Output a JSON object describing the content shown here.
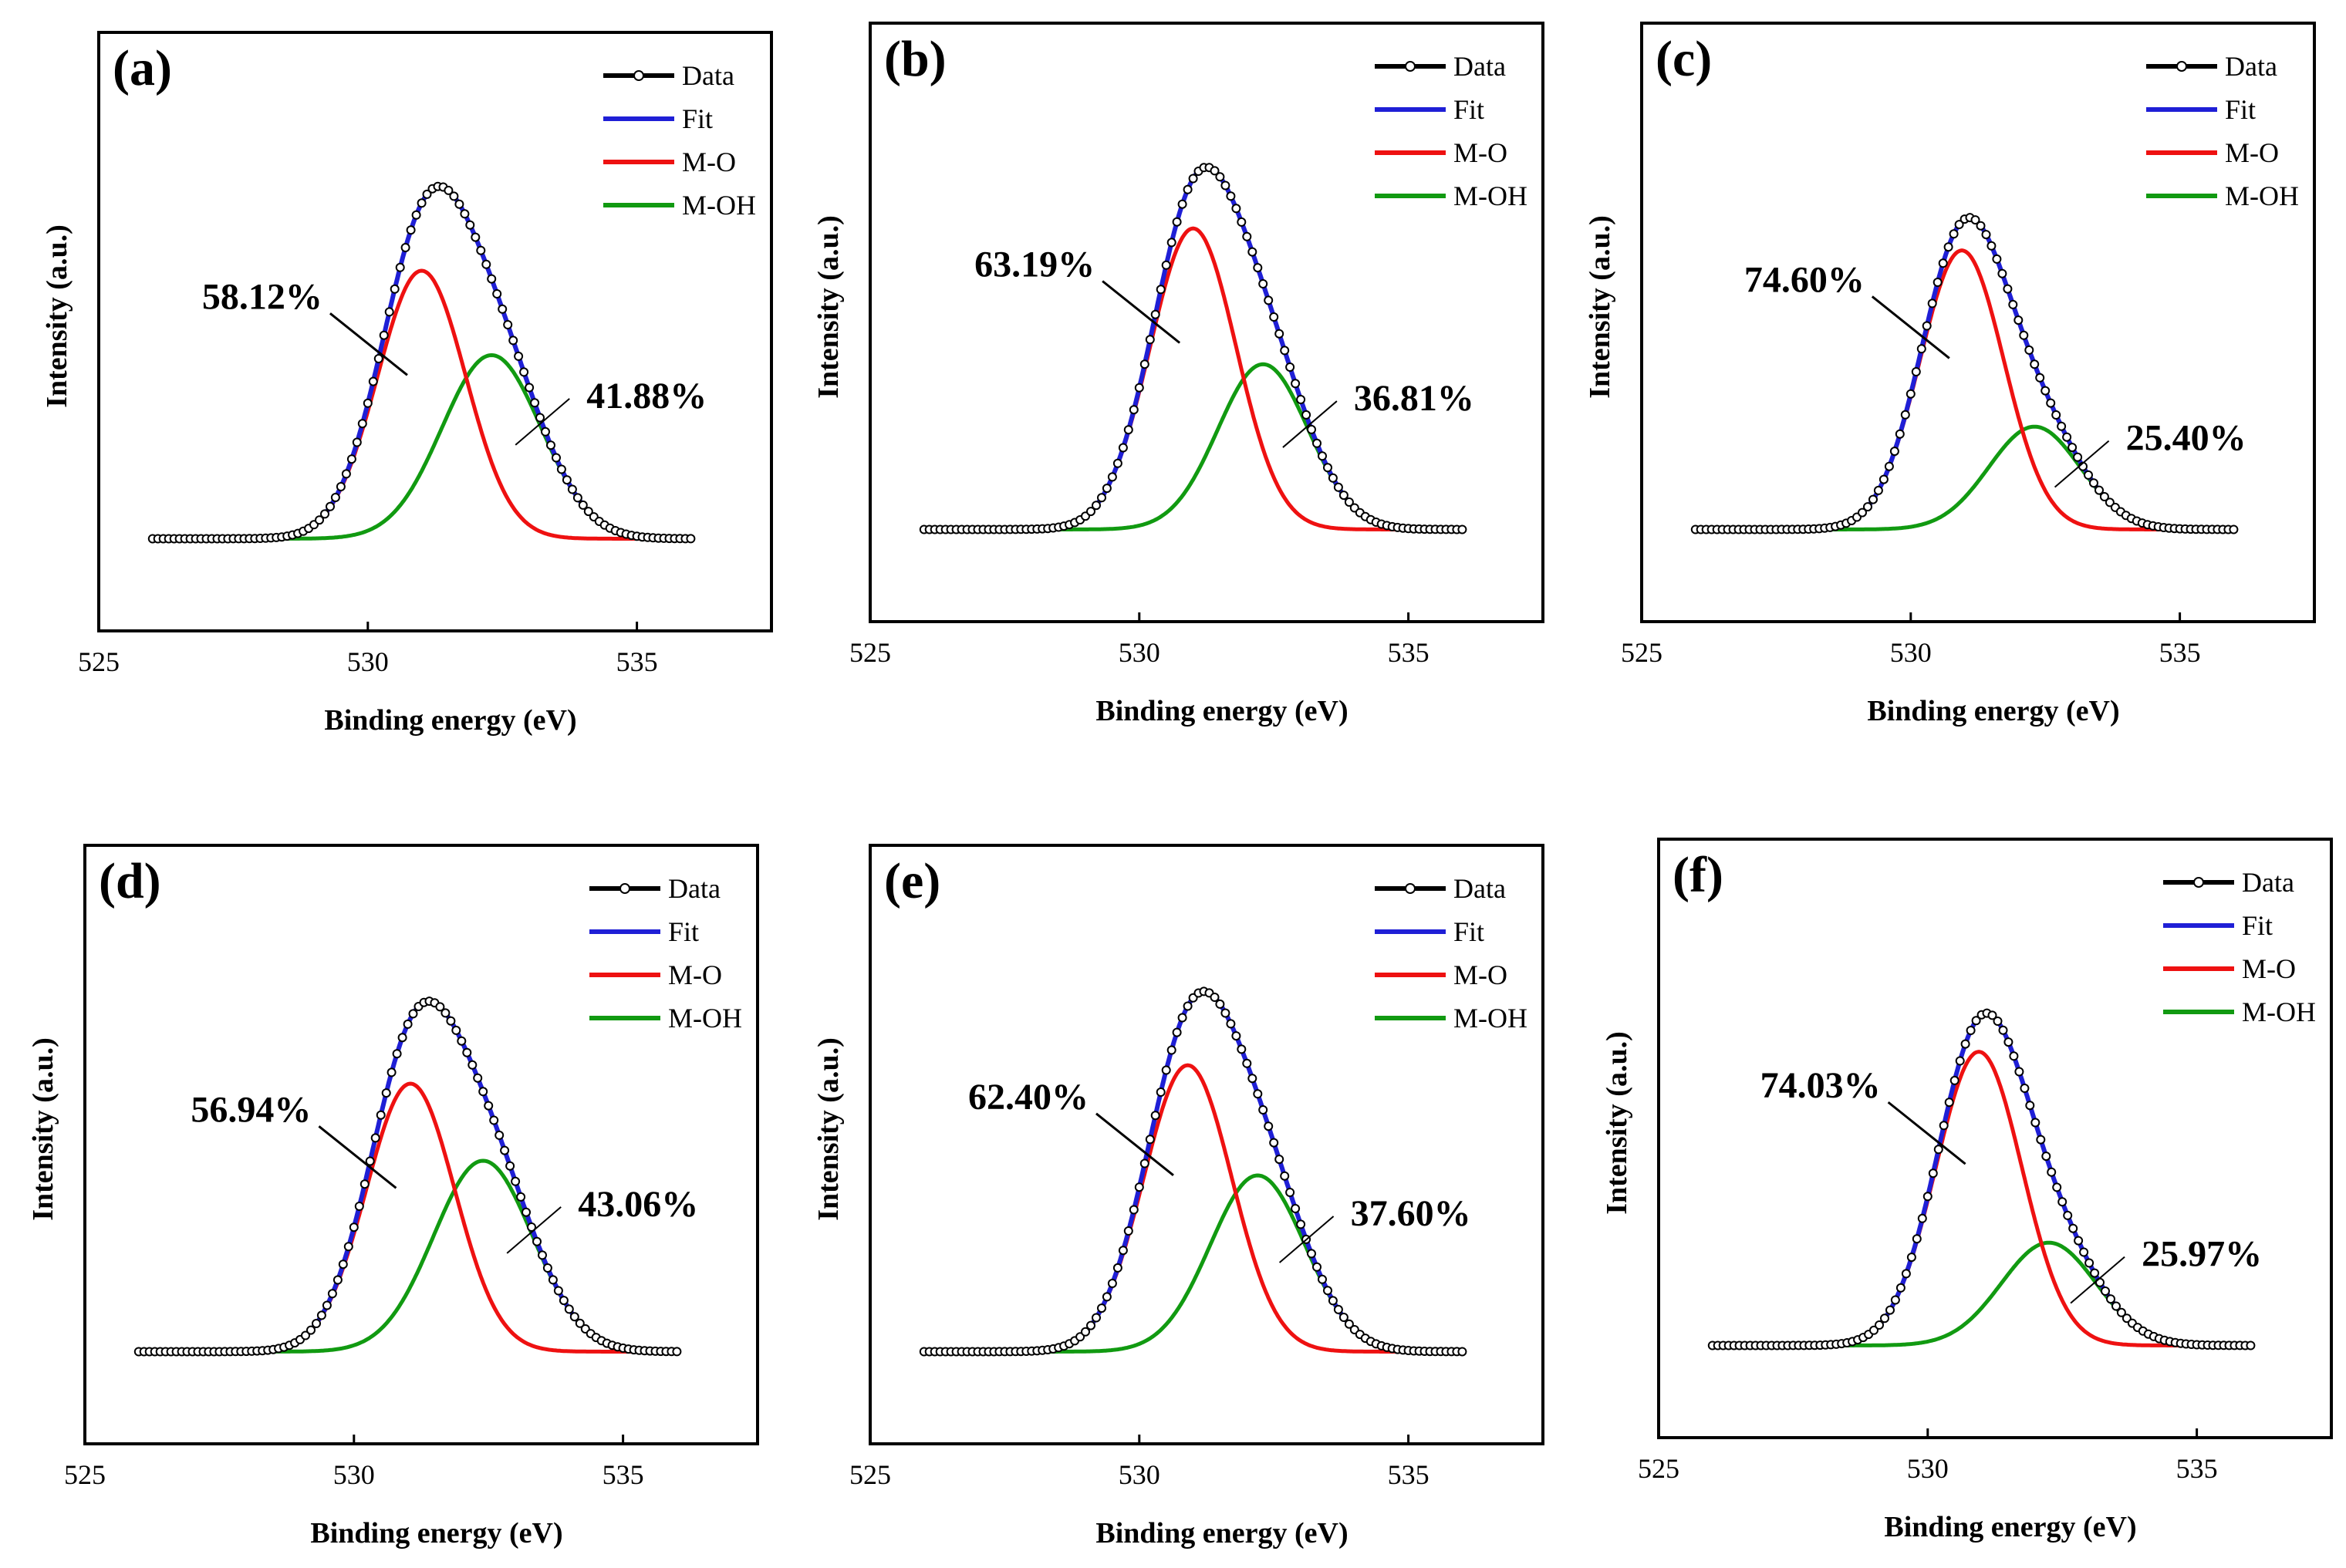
{
  "figure": {
    "series_names": [
      "Data",
      "Fit",
      "M-O",
      "M-OH"
    ],
    "colors": {
      "data": "#000000",
      "fit": "#1f1fd6",
      "mo": "#ee1111",
      "moh": "#119a11"
    }
  },
  "chart_data": [
    {
      "type": "line",
      "panel_label": "(a)",
      "xlabel": "Binding energy (eV)",
      "ylabel": "Intensity (a.u.)",
      "xlim": [
        525,
        537.5
      ],
      "x_ticks": [
        525,
        530,
        535
      ],
      "x_tick_labels": [
        "525",
        "530",
        "535"
      ],
      "x_range": [
        526,
        536
      ],
      "baseline": 0.02,
      "peaks": {
        "mo": {
          "center": 531.0,
          "height": 0.73,
          "sigma": 0.82
        },
        "moh": {
          "center": 532.3,
          "height": 0.5,
          "sigma": 0.92
        }
      },
      "legend": [
        "Data",
        "Fit",
        "M-O",
        "M-OH"
      ],
      "annotations": [
        {
          "text": "58.12%",
          "series": "M-O"
        },
        {
          "text": "41.88%",
          "series": "M-OH"
        }
      ]
    },
    {
      "type": "line",
      "panel_label": "(b)",
      "xlabel": "Binding energy (eV)",
      "ylabel": "Intensity (a.u.)",
      "xlim": [
        525,
        537.5
      ],
      "x_ticks": [
        525,
        530,
        535
      ],
      "x_tick_labels": [
        "525",
        "530",
        "535"
      ],
      "x_range": [
        526,
        536
      ],
      "baseline": 0.02,
      "peaks": {
        "mo": {
          "center": 531.0,
          "height": 0.82,
          "sigma": 0.8
        },
        "moh": {
          "center": 532.3,
          "height": 0.45,
          "sigma": 0.84
        }
      },
      "legend": [
        "Data",
        "Fit",
        "M-O",
        "M-OH"
      ],
      "annotations": [
        {
          "text": "63.19%",
          "series": "M-O"
        },
        {
          "text": "36.81%",
          "series": "M-OH"
        }
      ]
    },
    {
      "type": "line",
      "panel_label": "(c)",
      "xlabel": "Binding energy (eV)",
      "ylabel": "Intensity (a.u.)",
      "xlim": [
        525,
        537.5
      ],
      "x_ticks": [
        525,
        530,
        535
      ],
      "x_tick_labels": [
        "525",
        "530",
        "535"
      ],
      "x_range": [
        526,
        536
      ],
      "baseline": 0.02,
      "peaks": {
        "mo": {
          "center": 530.95,
          "height": 0.76,
          "sigma": 0.78
        },
        "moh": {
          "center": 532.3,
          "height": 0.28,
          "sigma": 0.85
        }
      },
      "legend": [
        "Data",
        "Fit",
        "M-O",
        "M-OH"
      ],
      "annotations": [
        {
          "text": "74.60%",
          "series": "M-O"
        },
        {
          "text": "25.40%",
          "series": "M-OH"
        }
      ]
    },
    {
      "type": "line",
      "panel_label": "(d)",
      "xlabel": "Binding energy (eV)",
      "ylabel": "Intensity (a.u.)",
      "xlim": [
        525,
        537.5
      ],
      "x_ticks": [
        525,
        530,
        535
      ],
      "x_tick_labels": [
        "525",
        "530",
        "535"
      ],
      "x_range": [
        526,
        536
      ],
      "baseline": 0.02,
      "peaks": {
        "mo": {
          "center": 531.05,
          "height": 0.73,
          "sigma": 0.82
        },
        "moh": {
          "center": 532.4,
          "height": 0.52,
          "sigma": 0.92
        }
      },
      "legend": [
        "Data",
        "Fit",
        "M-O",
        "M-OH"
      ],
      "annotations": [
        {
          "text": "56.94%",
          "series": "M-O"
        },
        {
          "text": "43.06%",
          "series": "M-OH"
        }
      ]
    },
    {
      "type": "line",
      "panel_label": "(e)",
      "xlabel": "Binding energy (eV)",
      "ylabel": "Intensity (a.u.)",
      "xlim": [
        525,
        537.5
      ],
      "x_ticks": [
        525,
        530,
        535
      ],
      "x_tick_labels": [
        "525",
        "530",
        "535"
      ],
      "x_range": [
        526,
        536
      ],
      "baseline": 0.02,
      "peaks": {
        "mo": {
          "center": 530.9,
          "height": 0.78,
          "sigma": 0.82
        },
        "moh": {
          "center": 532.2,
          "height": 0.48,
          "sigma": 0.88
        }
      },
      "legend": [
        "Data",
        "Fit",
        "M-O",
        "M-OH"
      ],
      "annotations": [
        {
          "text": "62.40%",
          "series": "M-O"
        },
        {
          "text": "37.60%",
          "series": "M-OH"
        }
      ]
    },
    {
      "type": "line",
      "panel_label": "(f)",
      "xlabel": "Binding energy (eV)",
      "ylabel": "Intensity (a.u.)",
      "xlim": [
        525,
        537.5
      ],
      "x_ticks": [
        525,
        530,
        535
      ],
      "x_tick_labels": [
        "525",
        "530",
        "535"
      ],
      "x_range": [
        526,
        536
      ],
      "baseline": 0.02,
      "peaks": {
        "mo": {
          "center": 530.95,
          "height": 0.8,
          "sigma": 0.8
        },
        "moh": {
          "center": 532.25,
          "height": 0.28,
          "sigma": 0.88
        }
      },
      "legend": [
        "Data",
        "Fit",
        "M-O",
        "M-OH"
      ],
      "annotations": [
        {
          "text": "74.03%",
          "series": "M-O"
        },
        {
          "text": "25.97%",
          "series": "M-OH"
        }
      ]
    }
  ]
}
